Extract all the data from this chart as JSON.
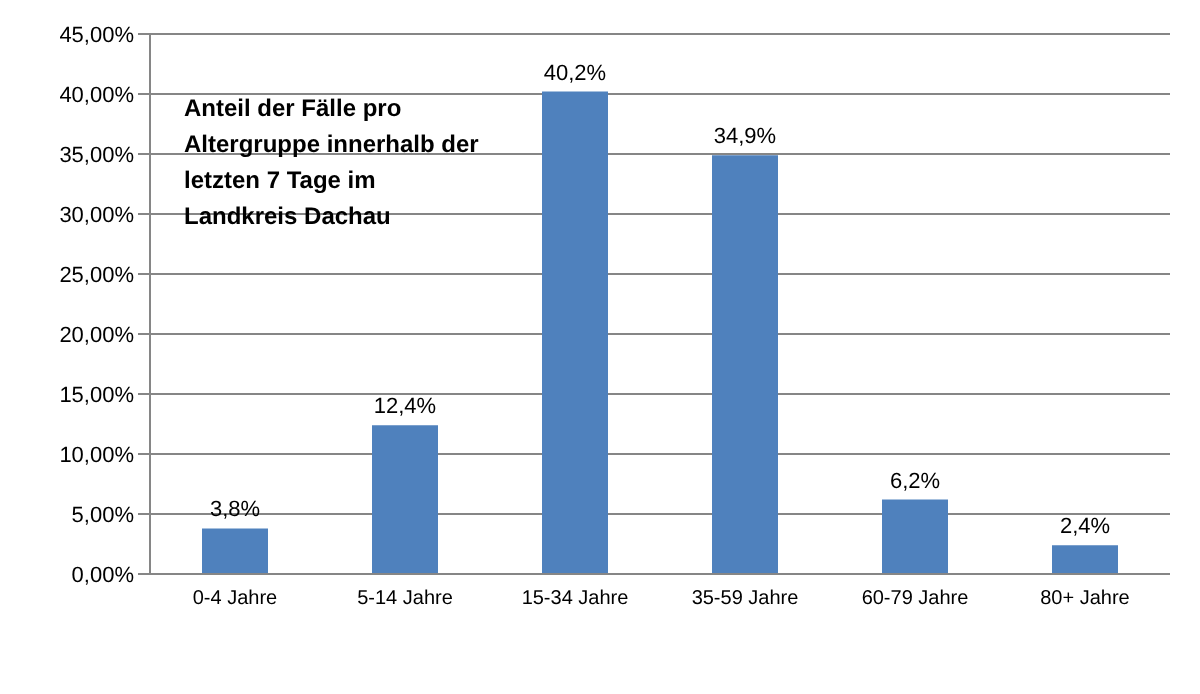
{
  "chart_data": {
    "type": "bar",
    "title": "Anteil der Fälle pro Altergruppe innerhalb der letzten 7 Tage im Landkreis Dachau",
    "categories": [
      "0-4 Jahre",
      "5-14 Jahre",
      "15-34 Jahre",
      "35-59 Jahre",
      "60-79 Jahre",
      "80+ Jahre"
    ],
    "values": [
      3.8,
      12.4,
      40.2,
      34.9,
      6.2,
      2.4
    ],
    "value_labels": [
      "3,8%",
      "12,4%",
      "40,2%",
      "34,9%",
      "6,2%",
      "2,4%"
    ],
    "color": "#4f81bd",
    "ylim": [
      0,
      45
    ],
    "yticks": [
      {
        "value": 0,
        "label": "0,00%"
      },
      {
        "value": 5,
        "label": "5,00%"
      },
      {
        "value": 10,
        "label": "10,00%"
      },
      {
        "value": 15,
        "label": "15,00%"
      },
      {
        "value": 20,
        "label": "20,00%"
      },
      {
        "value": 25,
        "label": "25,00%"
      },
      {
        "value": 30,
        "label": "30,00%"
      },
      {
        "value": 35,
        "label": "35,00%"
      },
      {
        "value": 40,
        "label": "40,00%"
      },
      {
        "value": 45,
        "label": "45,00%"
      }
    ],
    "grid": "y",
    "legend": false
  }
}
